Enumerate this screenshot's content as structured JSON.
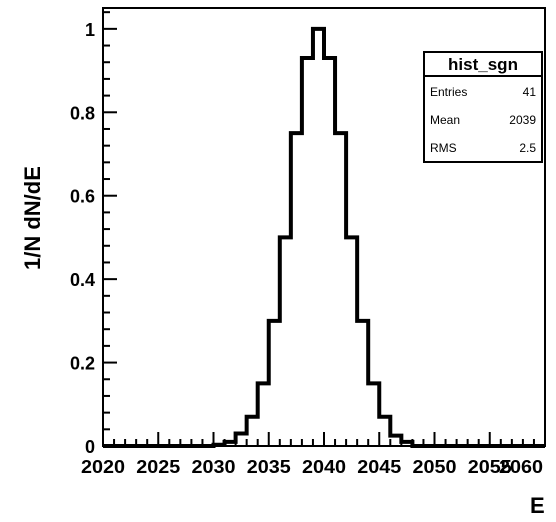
{
  "chart_data": {
    "type": "histogram",
    "xlabel": "E",
    "ylabel": "1/N dN/dE",
    "xlim": [
      2020,
      2060
    ],
    "ylim": [
      0,
      1.05
    ],
    "bin_width": 1,
    "x_ticks": [
      "2020",
      "2025",
      "2030",
      "2035",
      "2040",
      "2045",
      "2050",
      "2055",
      "2060"
    ],
    "y_ticks": [
      "0",
      "0.2",
      "0.4",
      "0.6",
      "0.8",
      "1"
    ],
    "bins": [
      {
        "x": 2030,
        "y": 0.003
      },
      {
        "x": 2031,
        "y": 0.01
      },
      {
        "x": 2032,
        "y": 0.03
      },
      {
        "x": 2033,
        "y": 0.07
      },
      {
        "x": 2034,
        "y": 0.15
      },
      {
        "x": 2035,
        "y": 0.3
      },
      {
        "x": 2036,
        "y": 0.5
      },
      {
        "x": 2037,
        "y": 0.75
      },
      {
        "x": 2038,
        "y": 0.93
      },
      {
        "x": 2039,
        "y": 1.0
      },
      {
        "x": 2040,
        "y": 0.93
      },
      {
        "x": 2041,
        "y": 0.75
      },
      {
        "x": 2042,
        "y": 0.5
      },
      {
        "x": 2043,
        "y": 0.3
      },
      {
        "x": 2044,
        "y": 0.15
      },
      {
        "x": 2045,
        "y": 0.07
      },
      {
        "x": 2046,
        "y": 0.025
      },
      {
        "x": 2047,
        "y": 0.01
      }
    ],
    "stats_box": {
      "title": "hist_sgn",
      "rows": [
        {
          "label": "Entries",
          "value": "41"
        },
        {
          "label": "Mean",
          "value": "2039"
        },
        {
          "label": "RMS",
          "value": "2.5"
        }
      ]
    },
    "line_color": "#000000",
    "grid": false
  }
}
